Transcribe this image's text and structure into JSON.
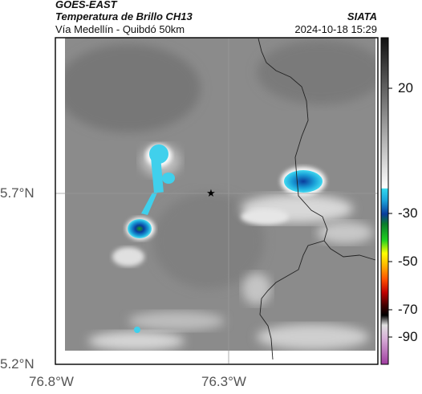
{
  "header": {
    "satellite": "GOES-EAST",
    "product": "Temperatura de Brillo CH13",
    "region": "Vía Medellín - Quibdó 50km",
    "agency": "SIATA",
    "timestamp": "2024-10-18 15:29"
  },
  "map": {
    "lat_label": "5.7°N",
    "lat_bottom_label": "5.2°N",
    "lon_labels": [
      "76.8°W",
      "76.3°W"
    ],
    "marker": "star-marker",
    "background_color": "#8a8a8a"
  },
  "colorbar": {
    "tick_labels": [
      "20",
      "-30",
      "-50",
      "-70",
      "-90"
    ],
    "colors": {
      "warm_top": "#1a1a1a",
      "warm_bottom": "#ffffff",
      "cyan": "#1ec8e6",
      "blue": "#0a3c9c",
      "green": "#14c814",
      "yellow": "#ffff00",
      "orange": "#ff7800",
      "red": "#c80000",
      "black": "#000000",
      "magenta": "#b43cb4"
    }
  }
}
